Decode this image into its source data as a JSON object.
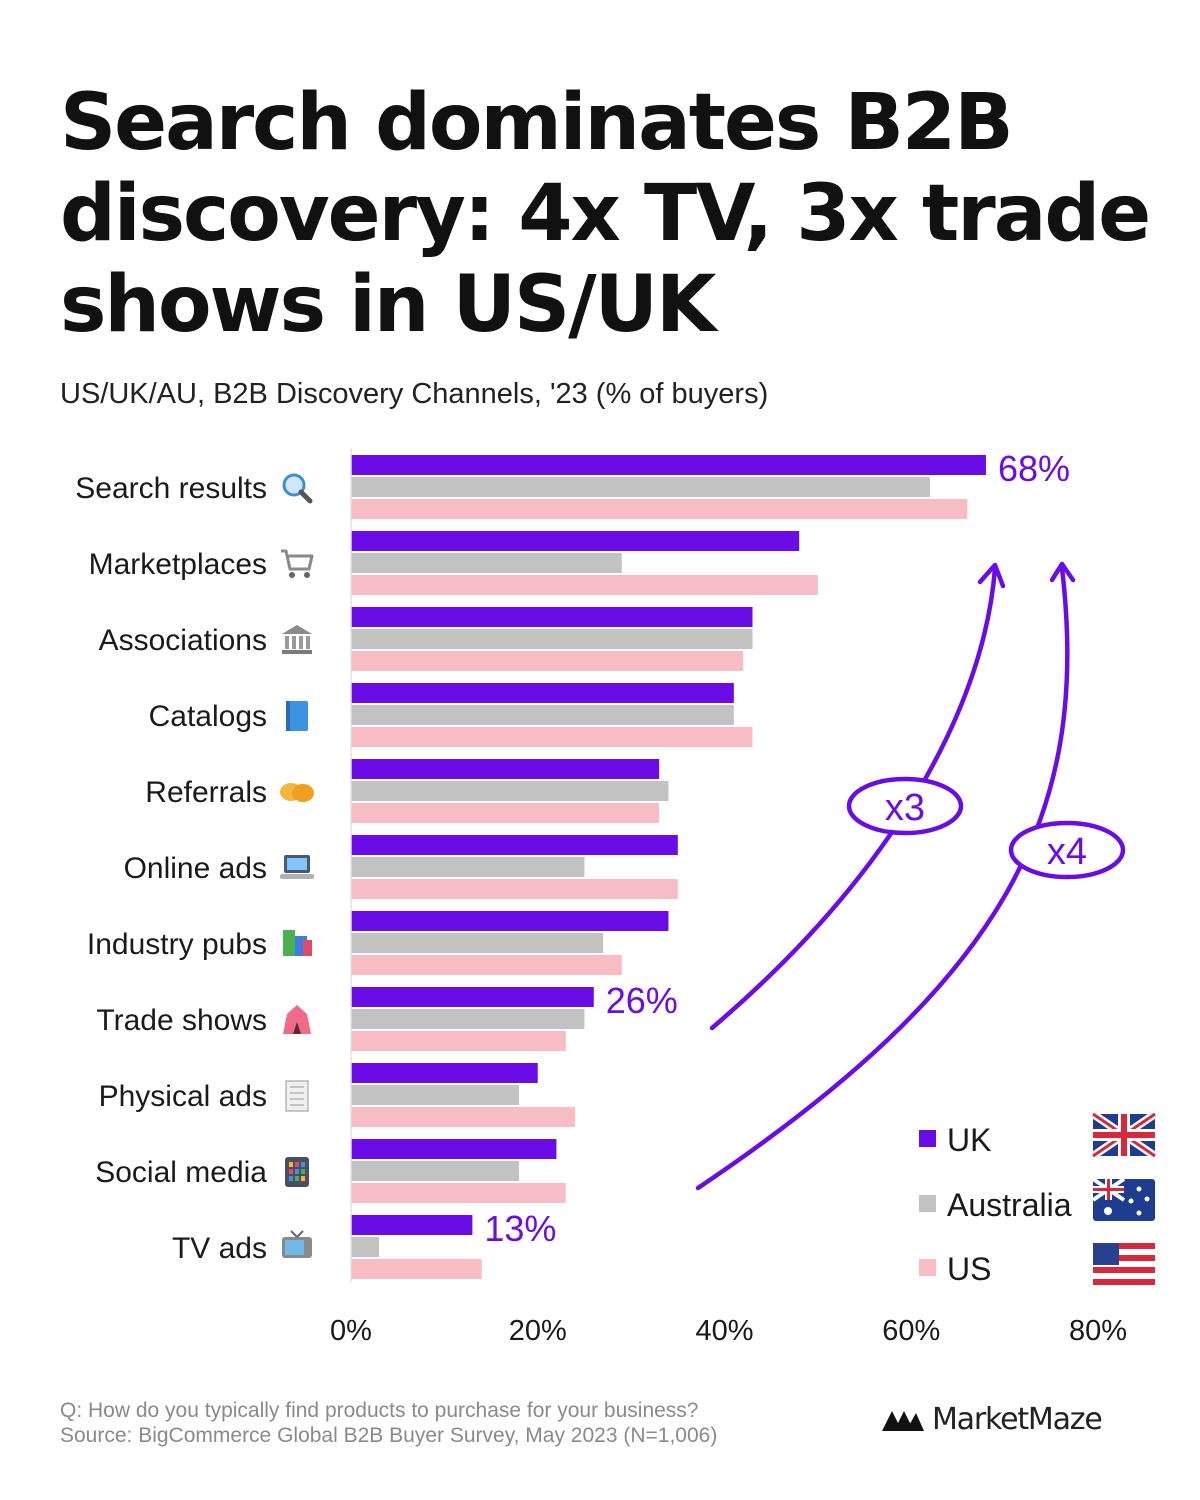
{
  "title": "Search dominates B2B discovery: 4x TV, 3x trade shows in US/UK",
  "subtitle": "US/UK/AU, B2B Discovery Channels, '23 (% of buyers)",
  "footer": {
    "question": "Q: How do you typically find products to purchase for your business?",
    "source": "Source: BigCommerce Global B2B Buyer Survey, May 2023 (N=1,006)"
  },
  "brand": {
    "name": "MarketMaze"
  },
  "annotations": [
    {
      "text": "x3",
      "color": "#6a0ce6"
    },
    {
      "text": "x4",
      "color": "#6a0ce6"
    }
  ],
  "chart_data": {
    "type": "bar",
    "orientation": "horizontal",
    "title": "Search dominates B2B discovery: 4x TV, 3x trade shows in US/UK",
    "subtitle": "US/UK/AU, B2B Discovery Channels, '23 (% of buyers)",
    "unit": "%",
    "xlim": [
      0,
      80
    ],
    "xticks": [
      0,
      20,
      40,
      60,
      80
    ],
    "xtick_labels": [
      "0%",
      "20%",
      "40%",
      "60%",
      "80%"
    ],
    "grid": false,
    "legend_position": "bottom-right",
    "categories": [
      "Search results",
      "Marketplaces",
      "Associations",
      "Catalogs",
      "Referrals",
      "Online ads",
      "Industry pubs",
      "Trade shows",
      "Physical ads",
      "Social media",
      "TV ads"
    ],
    "category_icons": [
      "magnifying-glass-icon",
      "shopping-cart-icon",
      "classical-building-icon",
      "blue-book-icon",
      "handshake-icon",
      "laptop-icon",
      "books-icon",
      "circus-tent-icon",
      "receipt-icon",
      "calculator-icon",
      "television-icon"
    ],
    "series": [
      {
        "name": "UK",
        "color": "#6a0ce6",
        "flag": "uk-flag-icon",
        "values": [
          68,
          48,
          43,
          41,
          33,
          35,
          34,
          26,
          20,
          22,
          13
        ]
      },
      {
        "name": "Australia",
        "color": "#c2c2c2",
        "flag": "australia-flag-icon",
        "values": [
          62,
          29,
          43,
          41,
          34,
          25,
          27,
          25,
          18,
          18,
          3
        ]
      },
      {
        "name": "US",
        "color": "#f8bcc4",
        "flag": "us-flag-icon",
        "values": [
          66,
          50,
          42,
          43,
          33,
          35,
          29,
          23,
          24,
          23,
          14
        ]
      }
    ],
    "data_labels": [
      {
        "category": "Search results",
        "series": "UK",
        "text": "68%"
      },
      {
        "category": "Trade shows",
        "series": "UK",
        "text": "26%"
      },
      {
        "category": "TV ads",
        "series": "UK",
        "text": "13%"
      }
    ]
  }
}
